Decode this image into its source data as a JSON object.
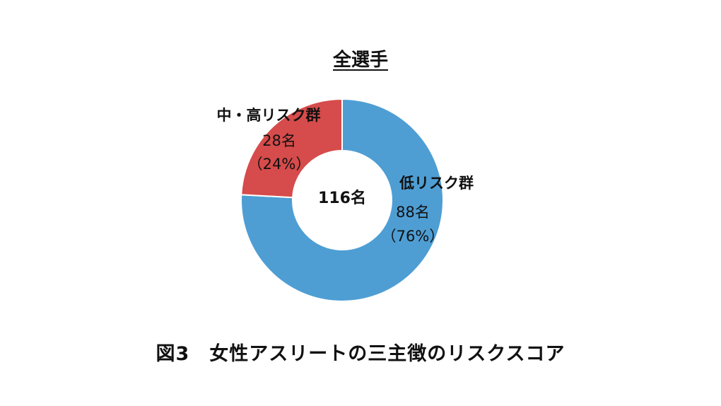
{
  "chart_data": {
    "type": "pie",
    "variant": "donut",
    "title": "全選手",
    "center_label": "116名",
    "slices": [
      {
        "name": "低リスク群",
        "count_label": "88名",
        "percent_label": "（76%）",
        "value": 88,
        "percent": 76,
        "color": "#4e9ed4"
      },
      {
        "name": "中・高リスク群",
        "count_label": "28名",
        "percent_label": "（24%）",
        "value": 28,
        "percent": 24,
        "color": "#d64b4b"
      }
    ]
  },
  "caption": "図3　女性アスリートの三主徴のリスクスコア"
}
